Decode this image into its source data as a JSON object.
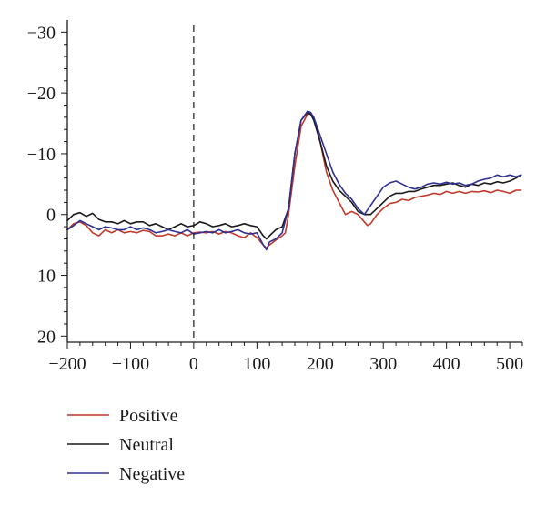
{
  "chart_data": {
    "type": "line",
    "title": "",
    "xlabel": "",
    "ylabel": "",
    "xlim": [
      -200,
      520
    ],
    "ylim": [
      -32,
      21
    ],
    "y_inverted": true,
    "x_ticks": [
      -200,
      -100,
      0,
      100,
      200,
      300,
      400,
      500
    ],
    "x_tick_labels": [
      "−200",
      "−100",
      "0",
      "100",
      "200",
      "300",
      "400",
      "500"
    ],
    "y_ticks": [
      -30,
      -20,
      -10,
      0,
      10,
      20
    ],
    "y_tick_labels": [
      "−30",
      "−20",
      "−10",
      "0",
      "10",
      "20"
    ],
    "grid": false,
    "marker_line": {
      "x": 0,
      "style": "dashed"
    },
    "legend_placement": "bottom-left",
    "colors": {
      "positive": "#c0392b",
      "neutral": "#1a1a1a",
      "negative": "#2e3192"
    },
    "series": [
      {
        "name": "Positive",
        "color": "#c0392b",
        "x": [
          -200,
          -190,
          -180,
          -170,
          -160,
          -150,
          -140,
          -130,
          -120,
          -110,
          -100,
          -90,
          -80,
          -70,
          -60,
          -50,
          -40,
          -30,
          -20,
          -10,
          0,
          10,
          20,
          30,
          40,
          50,
          60,
          70,
          80,
          90,
          100,
          110,
          115,
          120,
          130,
          140,
          145,
          150,
          160,
          170,
          180,
          185,
          190,
          200,
          210,
          220,
          230,
          240,
          250,
          260,
          270,
          275,
          280,
          290,
          300,
          310,
          320,
          330,
          340,
          350,
          360,
          370,
          380,
          390,
          400,
          410,
          420,
          430,
          440,
          450,
          460,
          470,
          480,
          490,
          500,
          510,
          518
        ],
        "y": [
          2.5,
          1.5,
          1.2,
          1.8,
          3.0,
          3.5,
          2.5,
          3.0,
          2.5,
          3.0,
          2.8,
          3.0,
          2.6,
          2.8,
          3.5,
          3.5,
          3.2,
          3.5,
          3.0,
          3.5,
          3.0,
          2.9,
          3.0,
          2.8,
          3.2,
          2.8,
          3.0,
          3.5,
          3.8,
          3.0,
          3.8,
          5.0,
          5.5,
          5.0,
          4.2,
          3.5,
          3.0,
          0.0,
          -8.0,
          -14.5,
          -16.5,
          -16.5,
          -16.0,
          -12.0,
          -7.0,
          -4.0,
          -2.0,
          0.0,
          -0.5,
          0.0,
          1.2,
          1.8,
          1.5,
          0.0,
          -1.0,
          -1.8,
          -2.0,
          -2.5,
          -2.3,
          -2.8,
          -3.0,
          -3.2,
          -3.5,
          -3.3,
          -3.8,
          -3.5,
          -3.8,
          -3.5,
          -3.8,
          -3.7,
          -3.9,
          -3.6,
          -4.0,
          -3.8,
          -3.5,
          -4.0,
          -4.0
        ]
      },
      {
        "name": "Neutral",
        "color": "#1a1a1a",
        "x": [
          -200,
          -190,
          -180,
          -170,
          -160,
          -150,
          -140,
          -130,
          -120,
          -110,
          -100,
          -90,
          -80,
          -70,
          -60,
          -50,
          -40,
          -30,
          -20,
          -10,
          0,
          10,
          20,
          30,
          40,
          50,
          60,
          70,
          80,
          90,
          100,
          110,
          115,
          120,
          130,
          140,
          150,
          160,
          170,
          180,
          185,
          190,
          200,
          210,
          220,
          230,
          240,
          250,
          260,
          270,
          280,
          290,
          300,
          310,
          320,
          330,
          340,
          350,
          360,
          370,
          380,
          390,
          400,
          410,
          420,
          430,
          440,
          450,
          460,
          470,
          480,
          490,
          500,
          510,
          518
        ],
        "y": [
          1.0,
          0.0,
          -0.3,
          0.3,
          -0.2,
          0.8,
          1.2,
          1.2,
          1.5,
          1.0,
          1.5,
          1.2,
          1.2,
          1.8,
          1.5,
          2.0,
          2.5,
          2.0,
          1.5,
          2.0,
          1.8,
          1.2,
          1.5,
          2.0,
          1.8,
          1.5,
          2.0,
          1.8,
          1.5,
          1.8,
          2.0,
          3.5,
          4.0,
          3.5,
          2.5,
          2.0,
          -1.0,
          -10.0,
          -15.5,
          -16.8,
          -16.5,
          -15.5,
          -12.0,
          -8.0,
          -5.5,
          -4.0,
          -3.0,
          -2.0,
          -0.5,
          0.0,
          0.0,
          -1.0,
          -2.0,
          -3.0,
          -3.5,
          -3.5,
          -3.8,
          -3.8,
          -4.2,
          -4.5,
          -4.8,
          -4.8,
          -5.0,
          -5.2,
          -4.8,
          -4.5,
          -5.0,
          -4.8,
          -5.2,
          -5.0,
          -5.4,
          -5.2,
          -5.5,
          -6.0,
          -6.5
        ]
      },
      {
        "name": "Negative",
        "color": "#2e3192",
        "x": [
          -200,
          -190,
          -180,
          -170,
          -160,
          -150,
          -140,
          -130,
          -120,
          -110,
          -100,
          -90,
          -80,
          -70,
          -60,
          -50,
          -40,
          -30,
          -20,
          -10,
          0,
          10,
          20,
          30,
          40,
          50,
          60,
          70,
          80,
          90,
          100,
          110,
          115,
          120,
          130,
          140,
          150,
          160,
          170,
          180,
          185,
          190,
          200,
          210,
          220,
          230,
          240,
          250,
          260,
          270,
          280,
          290,
          300,
          310,
          320,
          330,
          340,
          350,
          360,
          370,
          380,
          390,
          400,
          410,
          420,
          430,
          440,
          450,
          460,
          470,
          480,
          490,
          500,
          510,
          518
        ],
        "y": [
          2.5,
          1.8,
          1.0,
          1.5,
          2.0,
          2.5,
          2.0,
          2.2,
          2.5,
          2.5,
          2.0,
          2.5,
          2.2,
          2.5,
          3.0,
          2.8,
          2.5,
          2.8,
          3.0,
          2.5,
          3.2,
          3.0,
          2.8,
          3.0,
          2.5,
          3.0,
          2.8,
          2.5,
          3.0,
          3.2,
          3.0,
          5.0,
          5.8,
          4.5,
          4.0,
          3.0,
          -1.0,
          -10.0,
          -15.5,
          -17.0,
          -16.8,
          -16.0,
          -13.0,
          -10.0,
          -7.0,
          -5.0,
          -3.5,
          -2.5,
          -1.0,
          0.0,
          -1.5,
          -3.0,
          -4.5,
          -5.2,
          -5.5,
          -5.0,
          -4.5,
          -4.2,
          -4.5,
          -5.0,
          -5.2,
          -5.0,
          -5.3,
          -5.0,
          -5.2,
          -4.8,
          -5.0,
          -5.5,
          -5.8,
          -6.0,
          -6.5,
          -6.2,
          -6.5,
          -6.2,
          -6.5
        ]
      }
    ]
  }
}
